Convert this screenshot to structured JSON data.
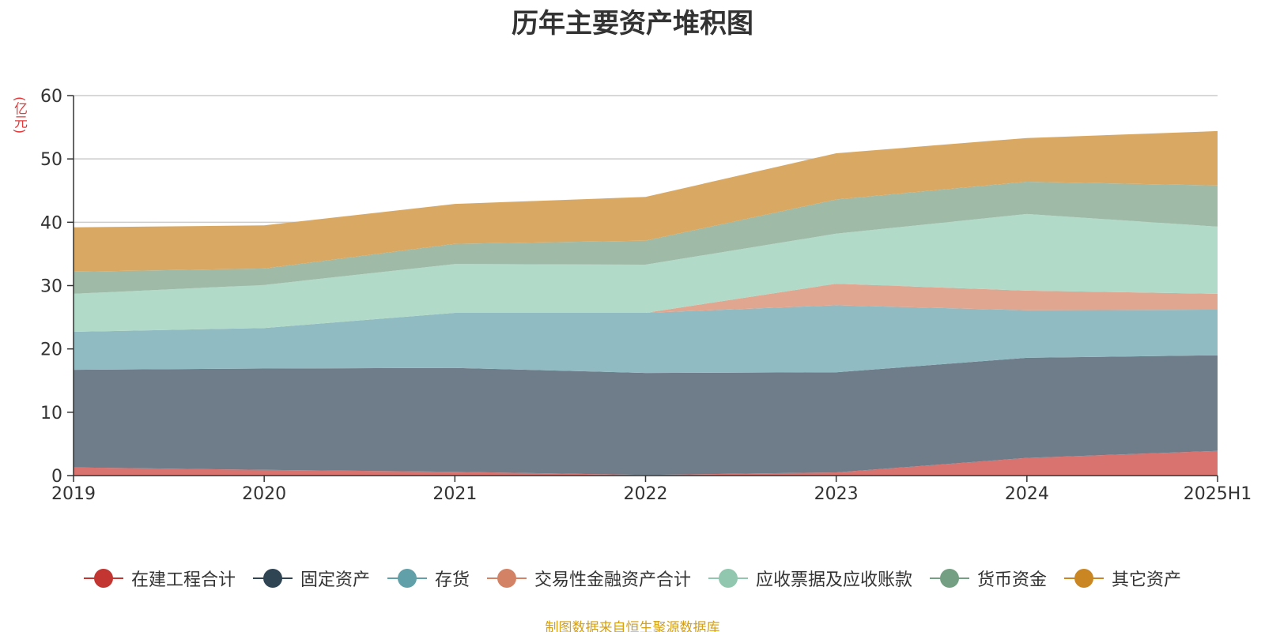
{
  "chart_data": {
    "type": "area",
    "stacked": true,
    "title": "历年主要资产堆积图",
    "unit_label": "(亿元)",
    "x": [
      "2019",
      "2020",
      "2021",
      "2022",
      "2023",
      "2024",
      "2025H1"
    ],
    "ylim": [
      0,
      60
    ],
    "yticks": [
      0,
      10,
      20,
      30,
      40,
      50,
      60
    ],
    "grid": true,
    "legend_position": "bottom",
    "series": [
      {
        "name": "在建工程合计",
        "color": "#c23531",
        "fill": "#d87370",
        "values": [
          1.3,
          0.9,
          0.6,
          0.1,
          0.5,
          2.8,
          3.9
        ]
      },
      {
        "name": "固定资产",
        "color": "#2f4554",
        "fill": "#6e7d89",
        "values": [
          15.4,
          16.0,
          16.4,
          16.1,
          15.8,
          15.8,
          15.1
        ]
      },
      {
        "name": "存货",
        "color": "#61a0a8",
        "fill": "#91bbc2",
        "values": [
          6.0,
          6.4,
          8.7,
          9.5,
          10.6,
          7.5,
          7.2
        ]
      },
      {
        "name": "交易性金融资产合计",
        "color": "#d48265",
        "fill": "#e1a690",
        "values": [
          0.0,
          0.0,
          0.0,
          0.0,
          3.4,
          3.1,
          2.5
        ]
      },
      {
        "name": "应收票据及应收账款",
        "color": "#91c7ae",
        "fill": "#b2dac8",
        "values": [
          6.0,
          6.8,
          7.7,
          7.6,
          7.9,
          12.1,
          10.6
        ]
      },
      {
        "name": "货币资金",
        "color": "#749f83",
        "fill": "#9fbba8",
        "values": [
          3.5,
          2.6,
          3.2,
          3.8,
          5.4,
          5.1,
          6.5
        ]
      },
      {
        "name": "其它资产",
        "color": "#ca8622",
        "fill": "#d9a963",
        "values": [
          7.0,
          6.8,
          6.3,
          6.9,
          7.3,
          6.9,
          8.6
        ]
      }
    ],
    "source_note": "制图数据来自恒生聚源数据库"
  }
}
